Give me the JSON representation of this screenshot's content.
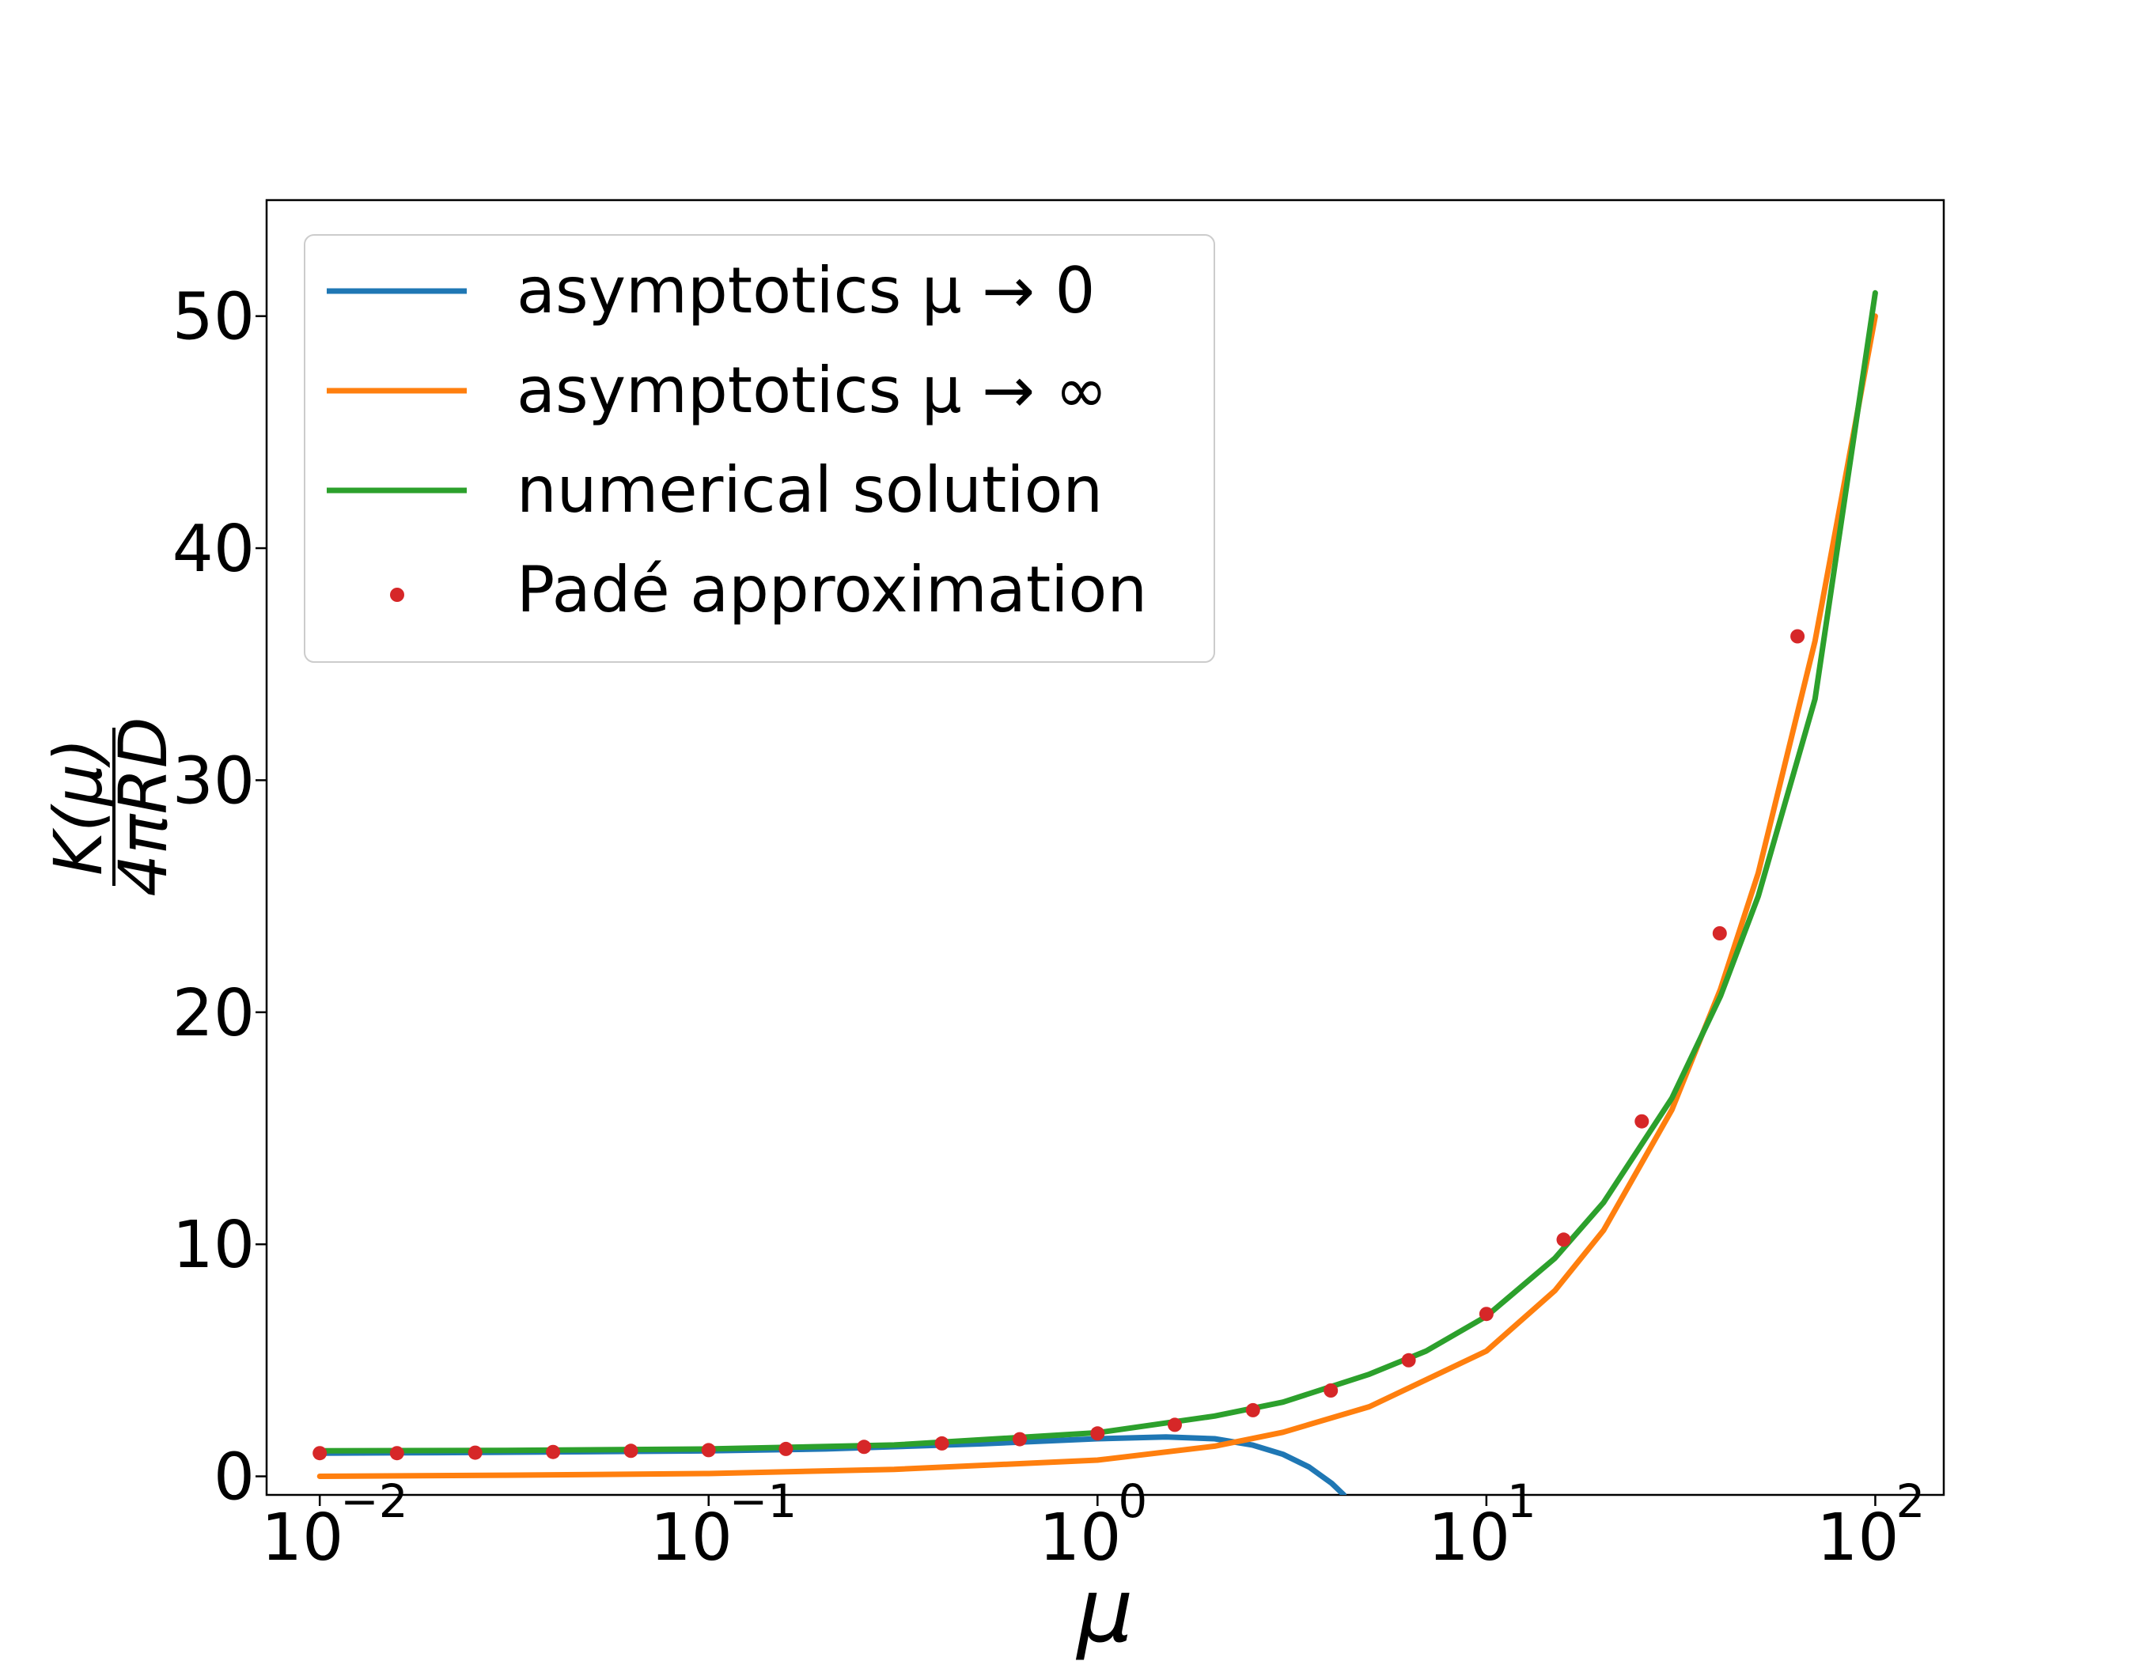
{
  "chart_data": {
    "type": "line",
    "xscale": "log",
    "xlim": [
      0.0073,
      150
    ],
    "ylim": [
      -0.8,
      55
    ],
    "x_ticks": [
      0.01,
      0.1,
      1,
      10,
      100
    ],
    "x_tick_labels": [
      {
        "base": "10",
        "exp": "−2"
      },
      {
        "base": "10",
        "exp": "−1"
      },
      {
        "base": "10",
        "exp": "0"
      },
      {
        "base": "10",
        "exp": "1"
      },
      {
        "base": "10",
        "exp": "2"
      }
    ],
    "y_ticks": [
      0,
      10,
      20,
      30,
      40,
      50
    ],
    "y_tick_labels": [
      "0",
      "10",
      "20",
      "30",
      "40",
      "50"
    ],
    "xlabel": "μ",
    "ylabel": {
      "numerator": "K(μ)",
      "denominator": "4πRD"
    },
    "legend_position": "upper-left",
    "grid": false,
    "series": [
      {
        "name": "asymptotics μ → 0",
        "kind": "line",
        "color": "#1f77b4",
        "x": [
          0.01,
          0.02,
          0.05,
          0.1,
          0.2,
          0.5,
          1,
          1.5,
          2,
          2.5,
          3,
          3.5,
          4,
          4.3
        ],
        "y": [
          1.0,
          1.02,
          1.06,
          1.1,
          1.18,
          1.4,
          1.62,
          1.7,
          1.62,
          1.35,
          0.95,
          0.4,
          -0.3,
          -0.8
        ]
      },
      {
        "name": "asymptotics μ → ∞",
        "kind": "line",
        "color": "#ff7f0e",
        "x": [
          0.01,
          0.03,
          0.1,
          0.3,
          1,
          2,
          3,
          5,
          10,
          15,
          20,
          30,
          40,
          50,
          70,
          100
        ],
        "y": [
          0.0,
          0.05,
          0.12,
          0.3,
          0.7,
          1.3,
          1.9,
          3.0,
          5.4,
          8.0,
          10.6,
          15.8,
          21.0,
          26.0,
          36.0,
          50.0
        ]
      },
      {
        "name": "numerical solution",
        "kind": "line",
        "color": "#2ca02c",
        "x": [
          0.01,
          0.03,
          0.1,
          0.3,
          1,
          2,
          3,
          5,
          7,
          10,
          15,
          20,
          30,
          40,
          50,
          70,
          100
        ],
        "y": [
          1.1,
          1.12,
          1.18,
          1.35,
          1.88,
          2.6,
          3.2,
          4.4,
          5.4,
          6.9,
          9.4,
          11.8,
          16.3,
          20.7,
          25.0,
          33.5,
          51.0
        ]
      },
      {
        "name": "Padé approximation",
        "kind": "scatter",
        "color": "#d62728",
        "x": [
          0.01,
          0.0158,
          0.0251,
          0.0398,
          0.0631,
          0.1,
          0.158,
          0.251,
          0.398,
          0.631,
          1.0,
          1.58,
          2.51,
          3.98,
          6.31,
          10.0,
          15.8,
          25.1,
          39.8,
          63.1
        ],
        "y": [
          1.0,
          1.0,
          1.02,
          1.05,
          1.1,
          1.13,
          1.18,
          1.27,
          1.42,
          1.6,
          1.85,
          2.22,
          2.85,
          3.7,
          5.0,
          7.0,
          10.2,
          15.3,
          23.4,
          36.2
        ]
      }
    ]
  }
}
